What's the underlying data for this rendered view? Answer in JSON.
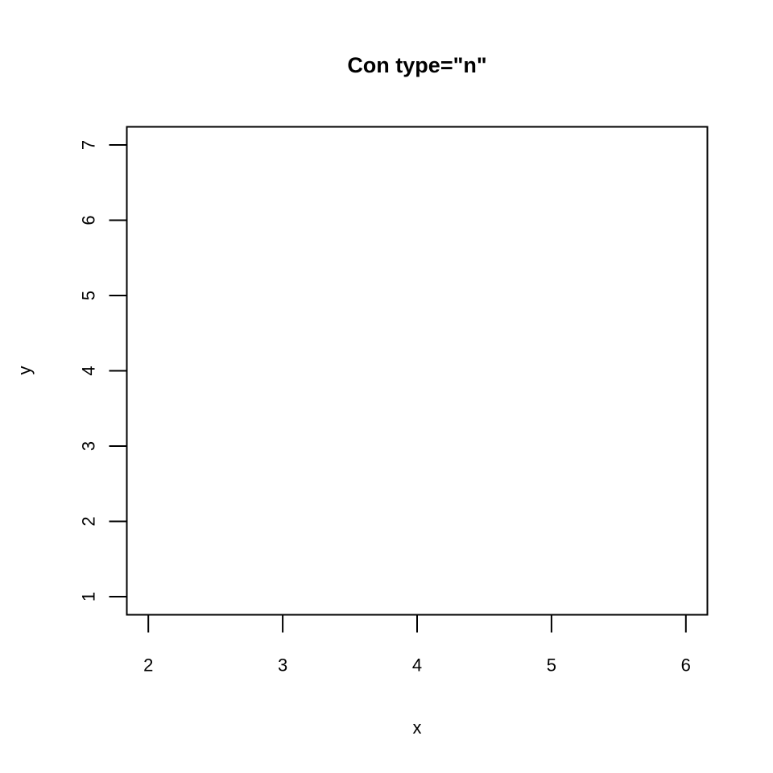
{
  "chart_data": {
    "type": "scatter",
    "plot_type": "n",
    "title": "Con type=\"n\"",
    "xlabel": "x",
    "ylabel": "y",
    "xlim": [
      1.84,
      6.16
    ],
    "ylim": [
      0.76,
      7.24
    ],
    "x_ticks": [
      2,
      3,
      4,
      5,
      6
    ],
    "y_ticks": [
      1,
      2,
      3,
      4,
      5,
      6,
      7
    ],
    "x_tick_labels": [
      "2",
      "3",
      "4",
      "5",
      "6"
    ],
    "y_tick_labels": [
      "1",
      "2",
      "3",
      "4",
      "5",
      "6",
      "7"
    ],
    "series": [],
    "grid": false,
    "legend": "none",
    "colors": {
      "background": "#ffffff",
      "foreground": "#000000"
    }
  }
}
